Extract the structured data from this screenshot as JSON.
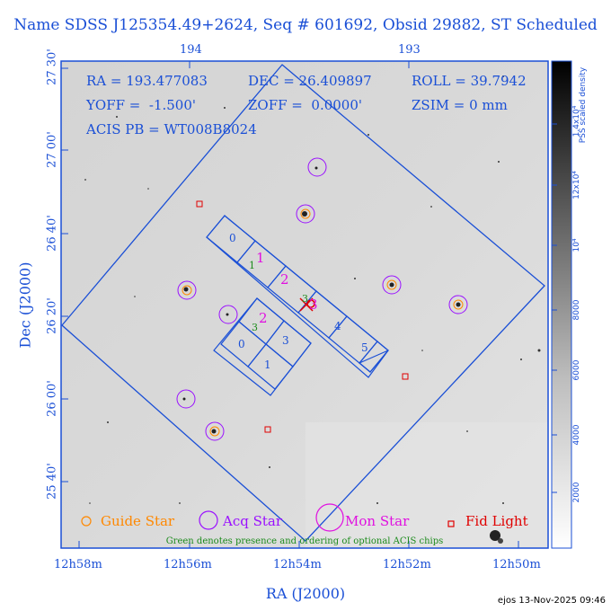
{
  "title": "Name SDSS J125354.49+2624, Seq # 601692, Obsid 29882, ST Scheduled",
  "top_ticks": [
    "194",
    "193"
  ],
  "bottom_ticks": [
    "12h58m",
    "12h56m",
    "12h54m",
    "12h52m",
    "12h50m"
  ],
  "ra_axis_label": "RA (J2000)",
  "dec_axis_label": "Dec (J2000)",
  "dec_ticks": [
    "27 30'",
    "27 00'",
    "26 40'",
    "26 20'",
    "26 00'",
    "25 40'"
  ],
  "info": {
    "ra": "RA = 193.477083",
    "dec": "DEC = 26.409897",
    "roll": "ROLL = 39.7942",
    "yoff": "YOFF =  -1.500'",
    "zoff": "ZOFF =  0.0000'",
    "zsim": "ZSIM = 0 mm",
    "acis": "ACIS PB = WT008B8024"
  },
  "chips": {
    "s_labels": [
      "0",
      "1",
      "2",
      "3",
      "4",
      "5"
    ],
    "i_labels": [
      "0",
      "1",
      "2",
      "3"
    ],
    "optional_markers": [
      "1",
      "3"
    ]
  },
  "legend": {
    "guide": "Guide Star",
    "acq": "Acq Star",
    "mon": "Mon Star",
    "fid": "Fid Light",
    "note": "Green denotes presence and ordering of optional ACIS chips"
  },
  "colorbar": {
    "ticks": [
      "2000",
      "4000",
      "6000",
      "8000",
      "10⁴",
      "12x10⁴",
      "1.4x10⁴"
    ],
    "label": "PSS scaled density"
  },
  "footer": "ejos 13-Nov-2025 09:46",
  "colors": {
    "accent": "#1a4fd6",
    "guide": "#ff8800",
    "acq": "#9a10ff",
    "mon": "#e010e0",
    "fid": "#e00000",
    "optional": "#1a8a1a"
  }
}
